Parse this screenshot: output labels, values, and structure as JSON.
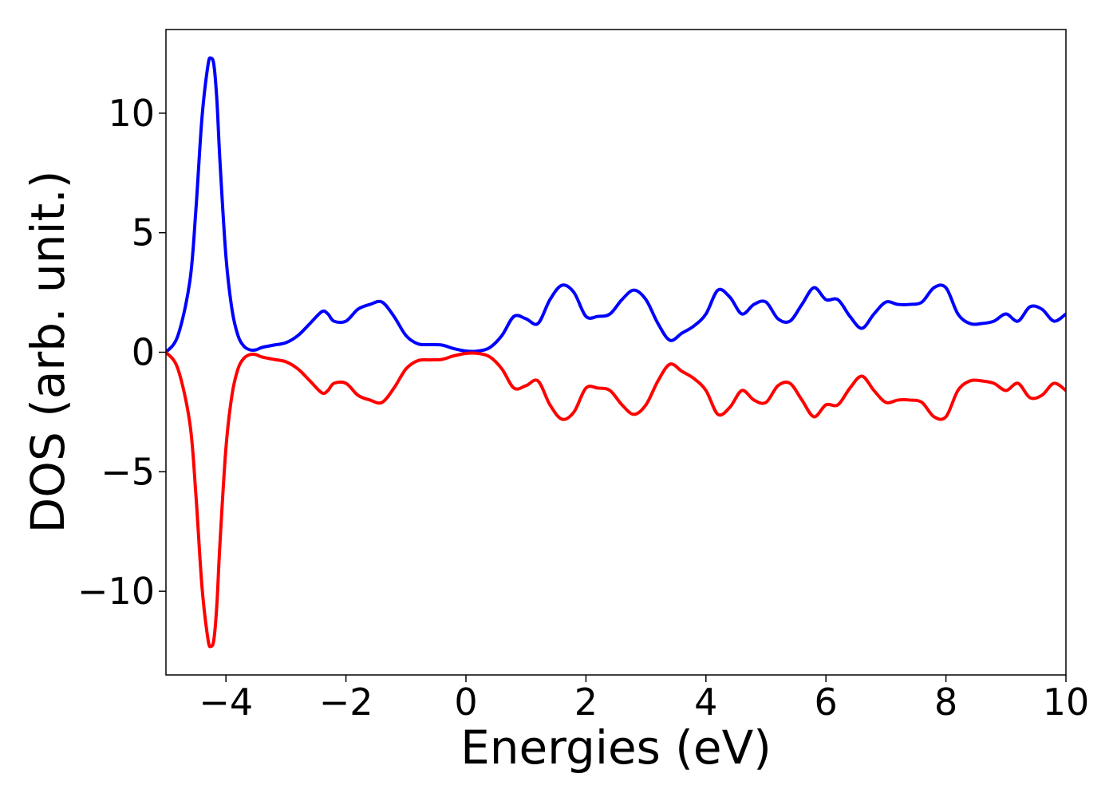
{
  "chart_data": {
    "type": "line",
    "title": "",
    "xlabel": "Energies (eV)",
    "ylabel": "DOS (arb. unit.)",
    "xlim": [
      -5,
      10
    ],
    "ylim": [
      -13.5,
      13.5
    ],
    "x_ticks": [
      -4,
      -2,
      0,
      2,
      4,
      6,
      8,
      10
    ],
    "x_tick_labels": [
      "−4",
      "−2",
      "0",
      "2",
      "4",
      "6",
      "8",
      "10"
    ],
    "y_ticks": [
      -10,
      -5,
      0,
      5,
      10
    ],
    "y_tick_labels": [
      "−10",
      "−5",
      "0",
      "5",
      "10"
    ],
    "grid": false,
    "legend": "none",
    "series": [
      {
        "color": "#0000ff",
        "x": [
          -5.0,
          -4.8,
          -4.6,
          -4.5,
          -4.4,
          -4.3,
          -4.25,
          -4.2,
          -4.15,
          -4.1,
          -4.0,
          -3.9,
          -3.8,
          -3.7,
          -3.6,
          -3.5,
          -3.4,
          -3.2,
          -3.0,
          -2.8,
          -2.6,
          -2.4,
          -2.3,
          -2.2,
          -2.0,
          -1.8,
          -1.6,
          -1.4,
          -1.2,
          -1.0,
          -0.8,
          -0.6,
          -0.4,
          -0.2,
          0.0,
          0.2,
          0.4,
          0.6,
          0.8,
          1.0,
          1.2,
          1.4,
          1.6,
          1.8,
          2.0,
          2.2,
          2.4,
          2.6,
          2.8,
          3.0,
          3.2,
          3.4,
          3.6,
          3.8,
          4.0,
          4.2,
          4.4,
          4.6,
          4.8,
          5.0,
          5.2,
          5.4,
          5.6,
          5.8,
          6.0,
          6.2,
          6.4,
          6.6,
          6.8,
          7.0,
          7.2,
          7.4,
          7.6,
          7.8,
          8.0,
          8.2,
          8.4,
          8.6,
          8.8,
          9.0,
          9.2,
          9.4,
          9.6,
          9.8,
          10.0
        ],
        "y": [
          0.0,
          0.7,
          3.0,
          6.0,
          9.8,
          12.0,
          12.3,
          12.0,
          10.5,
          8.0,
          4.0,
          1.8,
          0.7,
          0.25,
          0.1,
          0.1,
          0.2,
          0.3,
          0.4,
          0.7,
          1.2,
          1.7,
          1.6,
          1.3,
          1.3,
          1.8,
          2.0,
          2.1,
          1.5,
          0.7,
          0.35,
          0.32,
          0.3,
          0.15,
          0.05,
          0.05,
          0.2,
          0.7,
          1.5,
          1.4,
          1.2,
          2.2,
          2.8,
          2.5,
          1.5,
          1.5,
          1.6,
          2.2,
          2.6,
          2.2,
          1.2,
          0.5,
          0.8,
          1.1,
          1.6,
          2.6,
          2.3,
          1.6,
          2.0,
          2.1,
          1.4,
          1.3,
          2.0,
          2.7,
          2.2,
          2.2,
          1.5,
          1.0,
          1.6,
          2.1,
          2.0,
          2.0,
          2.1,
          2.7,
          2.7,
          1.6,
          1.2,
          1.2,
          1.3,
          1.6,
          1.3,
          1.9,
          1.8,
          1.3,
          1.6
        ]
      },
      {
        "color": "#ff0000",
        "x": [
          -5.0,
          -4.8,
          -4.6,
          -4.5,
          -4.4,
          -4.3,
          -4.25,
          -4.2,
          -4.15,
          -4.1,
          -4.0,
          -3.9,
          -3.8,
          -3.7,
          -3.6,
          -3.5,
          -3.4,
          -3.2,
          -3.0,
          -2.8,
          -2.6,
          -2.4,
          -2.3,
          -2.2,
          -2.0,
          -1.8,
          -1.6,
          -1.4,
          -1.2,
          -1.0,
          -0.8,
          -0.6,
          -0.4,
          -0.2,
          0.0,
          0.2,
          0.4,
          0.6,
          0.8,
          1.0,
          1.2,
          1.4,
          1.6,
          1.8,
          2.0,
          2.2,
          2.4,
          2.6,
          2.8,
          3.0,
          3.2,
          3.4,
          3.6,
          3.8,
          4.0,
          4.2,
          4.4,
          4.6,
          4.8,
          5.0,
          5.2,
          5.4,
          5.6,
          5.8,
          6.0,
          6.2,
          6.4,
          6.6,
          6.8,
          7.0,
          7.2,
          7.4,
          7.6,
          7.8,
          8.0,
          8.2,
          8.4,
          8.6,
          8.8,
          9.0,
          9.2,
          9.4,
          9.6,
          9.8,
          10.0
        ],
        "y": [
          0.0,
          -0.7,
          -3.0,
          -6.0,
          -9.8,
          -12.0,
          -12.3,
          -12.0,
          -10.5,
          -8.0,
          -4.0,
          -1.8,
          -0.7,
          -0.25,
          -0.1,
          -0.1,
          -0.2,
          -0.3,
          -0.4,
          -0.7,
          -1.2,
          -1.7,
          -1.6,
          -1.3,
          -1.3,
          -1.8,
          -2.0,
          -2.1,
          -1.5,
          -0.7,
          -0.35,
          -0.32,
          -0.3,
          -0.15,
          -0.05,
          -0.05,
          -0.2,
          -0.7,
          -1.5,
          -1.4,
          -1.2,
          -2.2,
          -2.8,
          -2.5,
          -1.5,
          -1.5,
          -1.6,
          -2.2,
          -2.6,
          -2.2,
          -1.2,
          -0.5,
          -0.8,
          -1.1,
          -1.6,
          -2.6,
          -2.3,
          -1.6,
          -2.0,
          -2.1,
          -1.4,
          -1.3,
          -2.0,
          -2.7,
          -2.2,
          -2.2,
          -1.5,
          -1.0,
          -1.6,
          -2.1,
          -2.0,
          -2.0,
          -2.1,
          -2.7,
          -2.7,
          -1.6,
          -1.2,
          -1.2,
          -1.3,
          -1.6,
          -1.3,
          -1.9,
          -1.8,
          -1.3,
          -1.6
        ]
      }
    ]
  }
}
